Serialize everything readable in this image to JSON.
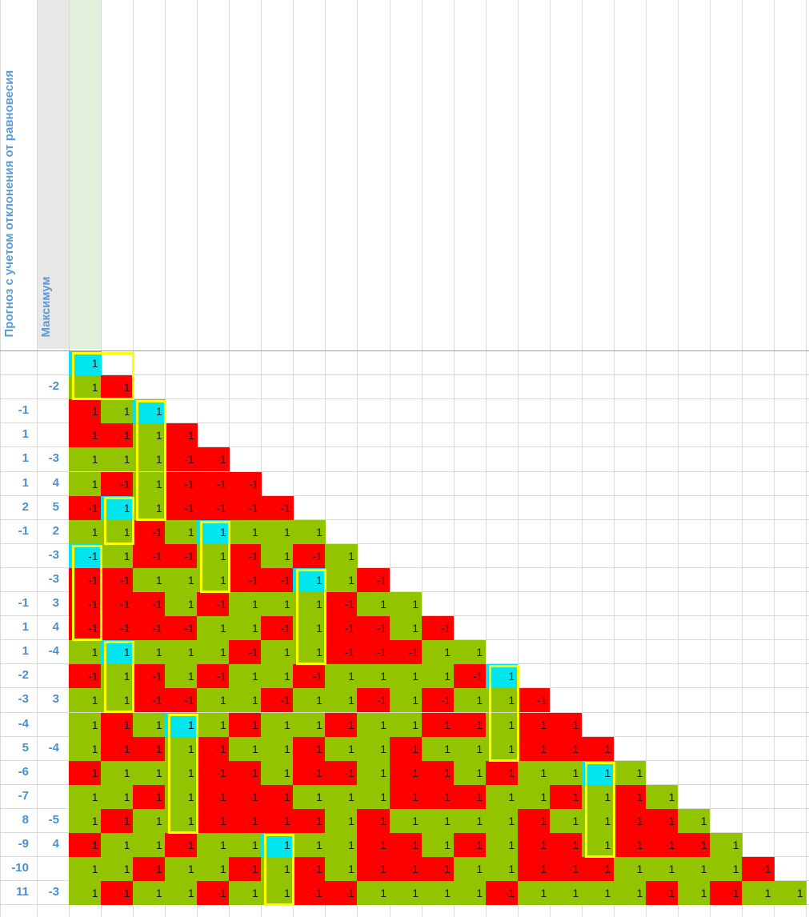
{
  "headers": {
    "col_a": "Прогноз с учетом отклонения от равновесия",
    "col_b": "Максимум"
  },
  "colors": {
    "positive": "#92c400",
    "negative": "#ff0000",
    "highlight": "#00e5ee",
    "box": "#ffff00",
    "label": "#4a8fd0"
  },
  "rows": [
    {
      "a": "",
      "b": "",
      "cells": [
        1
      ]
    },
    {
      "a": "",
      "b": "-2",
      "cells": [
        1,
        -1
      ]
    },
    {
      "a": "-1",
      "b": "",
      "cells": [
        -1,
        1,
        1
      ]
    },
    {
      "a": "1",
      "b": "",
      "cells": [
        -1,
        -1,
        1,
        -1
      ]
    },
    {
      "a": "1",
      "b": "-3",
      "cells": [
        1,
        1,
        1,
        -1,
        -1
      ]
    },
    {
      "a": "1",
      "b": "4",
      "cells": [
        1,
        -1,
        1,
        -1,
        -1,
        -1
      ]
    },
    {
      "a": "2",
      "b": "5",
      "cells": [
        -1,
        1,
        1,
        -1,
        -1,
        -1,
        -1
      ]
    },
    {
      "a": "-1",
      "b": "2",
      "cells": [
        1,
        1,
        -1,
        1,
        1,
        1,
        1,
        1
      ]
    },
    {
      "a": "",
      "b": "-3",
      "cells": [
        -1,
        1,
        -1,
        -1,
        1,
        -1,
        1,
        -1,
        1
      ]
    },
    {
      "a": "",
      "b": "-3",
      "cells": [
        -1,
        -1,
        1,
        1,
        1,
        -1,
        -1,
        1,
        1,
        -1
      ]
    },
    {
      "a": "-1",
      "b": "3",
      "cells": [
        -1,
        -1,
        -1,
        1,
        -1,
        1,
        1,
        1,
        -1,
        1,
        1
      ]
    },
    {
      "a": "1",
      "b": "4",
      "cells": [
        -1,
        -1,
        -1,
        -1,
        1,
        1,
        -1,
        1,
        -1,
        -1,
        1,
        -1
      ]
    },
    {
      "a": "1",
      "b": "-4",
      "cells": [
        1,
        1,
        1,
        1,
        1,
        -1,
        1,
        1,
        -1,
        -1,
        -1,
        1,
        1
      ]
    },
    {
      "a": "-2",
      "b": "",
      "cells": [
        -1,
        1,
        -1,
        1,
        -1,
        1,
        1,
        -1,
        1,
        1,
        1,
        1,
        -1,
        1
      ]
    },
    {
      "a": "-3",
      "b": "3",
      "cells": [
        1,
        1,
        -1,
        -1,
        1,
        1,
        -1,
        1,
        1,
        -1,
        1,
        -1,
        1,
        1,
        -1
      ]
    },
    {
      "a": "-4",
      "b": "",
      "cells": [
        1,
        -1,
        1,
        1,
        1,
        -1,
        1,
        1,
        -1,
        1,
        1,
        -1,
        -1,
        1,
        -1,
        -1
      ]
    },
    {
      "a": "5",
      "b": "-4",
      "cells": [
        1,
        -1,
        -1,
        1,
        -1,
        1,
        1,
        -1,
        1,
        1,
        -1,
        1,
        1,
        1,
        -1,
        -1,
        -1
      ]
    },
    {
      "a": "-6",
      "b": "",
      "cells": [
        -1,
        1,
        1,
        1,
        -1,
        -1,
        1,
        -1,
        -1,
        1,
        -1,
        -1,
        1,
        -1,
        1,
        1,
        1,
        1
      ]
    },
    {
      "a": "-7",
      "b": "",
      "cells": [
        1,
        1,
        -1,
        1,
        -1,
        -1,
        -1,
        1,
        1,
        1,
        -1,
        -1,
        -1,
        1,
        1,
        -1,
        1,
        -1,
        1
      ]
    },
    {
      "a": "8",
      "b": "-5",
      "cells": [
        1,
        -1,
        1,
        1,
        -1,
        -1,
        -1,
        -1,
        1,
        -1,
        1,
        1,
        1,
        1,
        -1,
        1,
        1,
        -1,
        -1,
        1
      ]
    },
    {
      "a": "-9",
      "b": "4",
      "cells": [
        -1,
        1,
        1,
        -1,
        1,
        1,
        1,
        1,
        1,
        -1,
        -1,
        1,
        -1,
        1,
        -1,
        -1,
        1,
        -1,
        -1,
        -1,
        1
      ]
    },
    {
      "a": "-10",
      "b": "",
      "cells": [
        1,
        1,
        -1,
        1,
        1,
        -1,
        1,
        -1,
        1,
        -1,
        -1,
        -1,
        1,
        1,
        -1,
        -1,
        -1,
        1,
        1,
        1,
        1,
        -1
      ]
    },
    {
      "a": "11",
      "b": "-3",
      "cells": [
        1,
        -1,
        1,
        1,
        -1,
        1,
        1,
        -1,
        -1,
        1,
        1,
        1,
        1,
        -1,
        1,
        1,
        1,
        1,
        -1,
        1,
        -1,
        1,
        1
      ]
    }
  ],
  "highlights": [
    [
      0,
      0
    ],
    [
      2,
      2
    ],
    [
      6,
      1
    ],
    [
      7,
      4
    ],
    [
      8,
      0
    ],
    [
      9,
      7
    ],
    [
      12,
      1
    ],
    [
      13,
      13
    ],
    [
      15,
      3
    ],
    [
      17,
      16
    ],
    [
      20,
      6
    ]
  ],
  "boxes": [
    [
      0,
      0,
      1,
      1
    ],
    [
      2,
      2,
      6,
      2
    ],
    [
      6,
      1,
      7,
      1
    ],
    [
      7,
      4,
      9,
      4
    ],
    [
      8,
      0,
      11,
      0
    ],
    [
      9,
      7,
      12,
      7
    ],
    [
      12,
      1,
      14,
      1
    ],
    [
      13,
      13,
      16,
      13
    ],
    [
      15,
      3,
      19,
      3
    ],
    [
      17,
      16,
      20,
      16
    ],
    [
      20,
      6,
      22,
      6
    ]
  ]
}
